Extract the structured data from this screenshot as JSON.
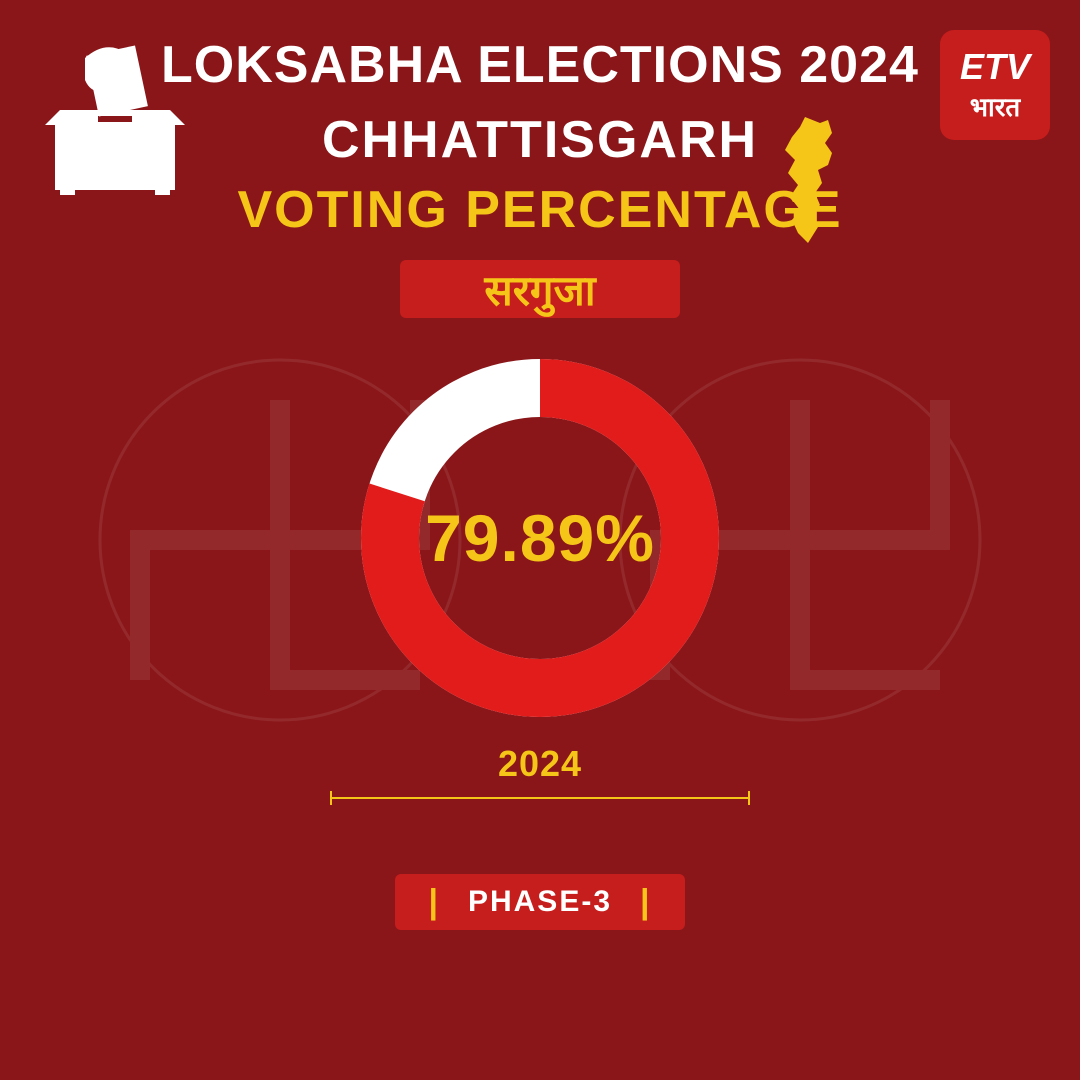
{
  "header": {
    "line1": "LOKSABHA ELECTIONS 2024",
    "line2": "CHHATTISGARH",
    "line3": "VOTING PERCENTAGE"
  },
  "logo": {
    "top": "ETV",
    "bottom": "भारत"
  },
  "constituency": "सरगुजा",
  "chart": {
    "type": "donut",
    "value": 79.89,
    "display": "79.89%",
    "year": "2024",
    "radius": 150,
    "stroke_width": 58,
    "fg_color": "#e21b1b",
    "bg_color": "#ffffff",
    "text_color": "#f5c518"
  },
  "phase": "PHASE-3",
  "colors": {
    "page_bg": "#8a1619",
    "accent_red": "#c61d1d",
    "accent_yellow": "#f5c518",
    "white": "#ffffff",
    "map_fill": "#f5c518"
  }
}
